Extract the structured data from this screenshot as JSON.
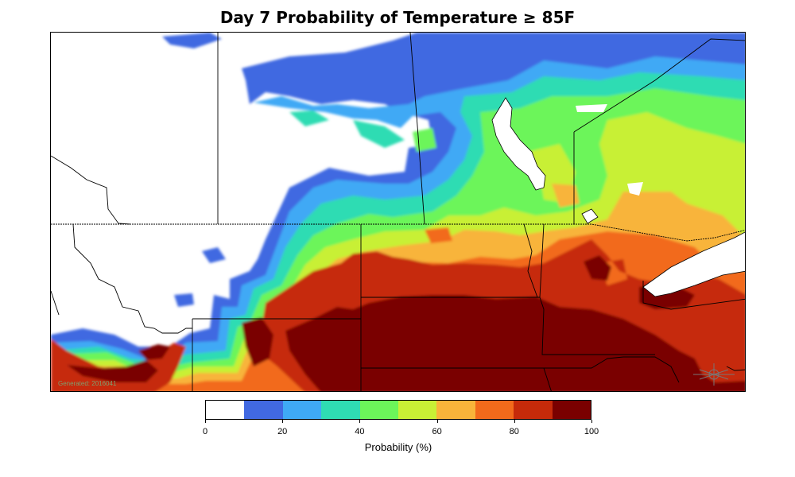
{
  "title": "Day 7 Probability of Temperature ≥ 85F",
  "watermark": "Generated: 2016041",
  "colorbar": {
    "label": "Probability (%)",
    "colors": [
      "#ffffff",
      "#4169e1",
      "#3fa9f5",
      "#2fdcb3",
      "#6cf55a",
      "#c8f035",
      "#f8b43a",
      "#f26a1b",
      "#c62a0a",
      "#7a0000"
    ],
    "bins": [
      [
        0,
        10
      ],
      [
        10,
        20
      ],
      [
        20,
        30
      ],
      [
        30,
        40
      ],
      [
        40,
        50
      ],
      [
        50,
        60
      ],
      [
        60,
        70
      ],
      [
        70,
        80
      ],
      [
        80,
        90
      ],
      [
        90,
        100
      ]
    ],
    "ticks": [
      "0",
      "20",
      "40",
      "60",
      "80",
      "100"
    ],
    "range": [
      0,
      100
    ]
  }
}
